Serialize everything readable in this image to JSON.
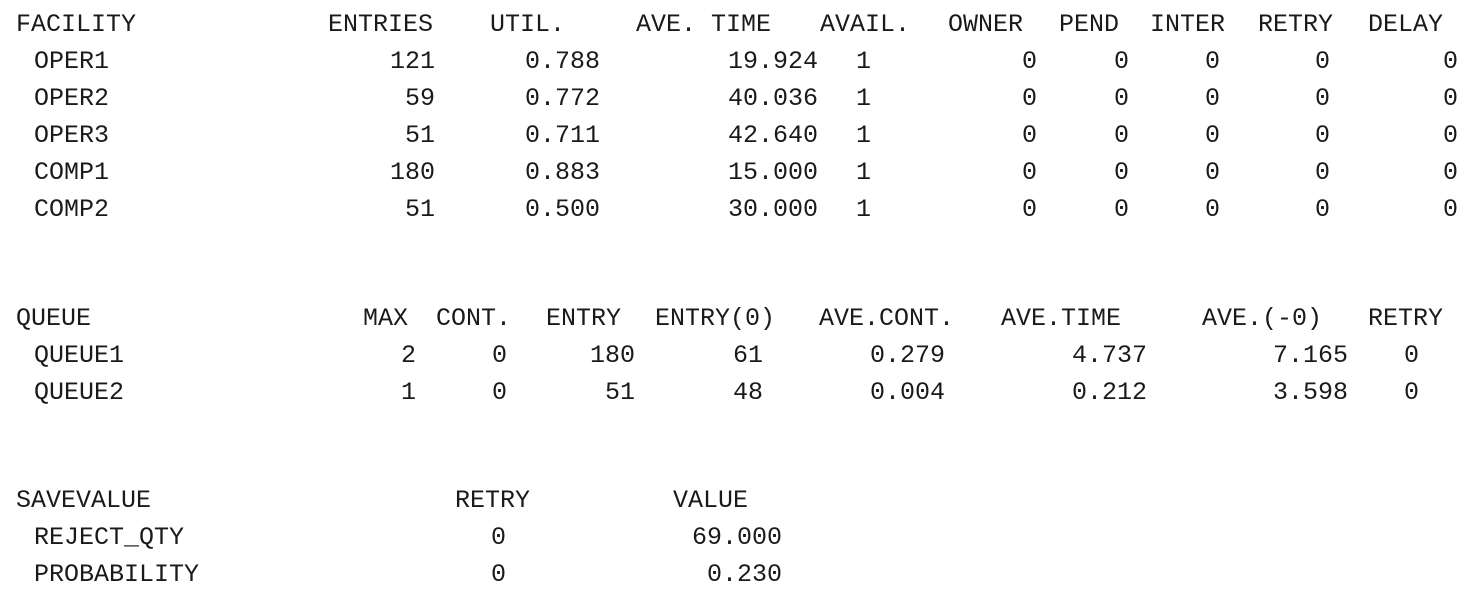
{
  "facility": {
    "headers": [
      "FACILITY",
      "ENTRIES",
      "UTIL.",
      "AVE. TIME",
      "AVAIL.",
      "OWNER",
      "PEND",
      "INTER",
      "RETRY",
      "DELAY"
    ],
    "rows": [
      [
        "OPER1",
        "121",
        "0.788",
        "19.924",
        "1",
        "0",
        "0",
        "0",
        "0",
        "0"
      ],
      [
        "OPER2",
        "59",
        "0.772",
        "40.036",
        "1",
        "0",
        "0",
        "0",
        "0",
        "0"
      ],
      [
        "OPER3",
        "51",
        "0.711",
        "42.640",
        "1",
        "0",
        "0",
        "0",
        "0",
        "0"
      ],
      [
        "COMP1",
        "180",
        "0.883",
        "15.000",
        "1",
        "0",
        "0",
        "0",
        "0",
        "0"
      ],
      [
        "COMP2",
        "51",
        "0.500",
        "30.000",
        "1",
        "0",
        "0",
        "0",
        "0",
        "0"
      ]
    ]
  },
  "queue": {
    "headers": [
      "QUEUE",
      "MAX",
      "CONT.",
      "ENTRY",
      "ENTRY(0)",
      "AVE.CONT.",
      "AVE.TIME",
      "AVE.(-0)",
      "RETRY"
    ],
    "rows": [
      [
        "QUEUE1",
        "2",
        "0",
        "180",
        "61",
        "0.279",
        "4.737",
        "7.165",
        "0"
      ],
      [
        "QUEUE2",
        "1",
        "0",
        "51",
        "48",
        "0.004",
        "0.212",
        "3.598",
        "0"
      ]
    ]
  },
  "savevalue": {
    "headers": [
      "SAVEVALUE",
      "RETRY",
      "VALUE"
    ],
    "rows": [
      [
        "REJECT_QTY",
        "0",
        "69.000"
      ],
      [
        "PROBABILITY",
        "0",
        "0.230"
      ]
    ]
  }
}
